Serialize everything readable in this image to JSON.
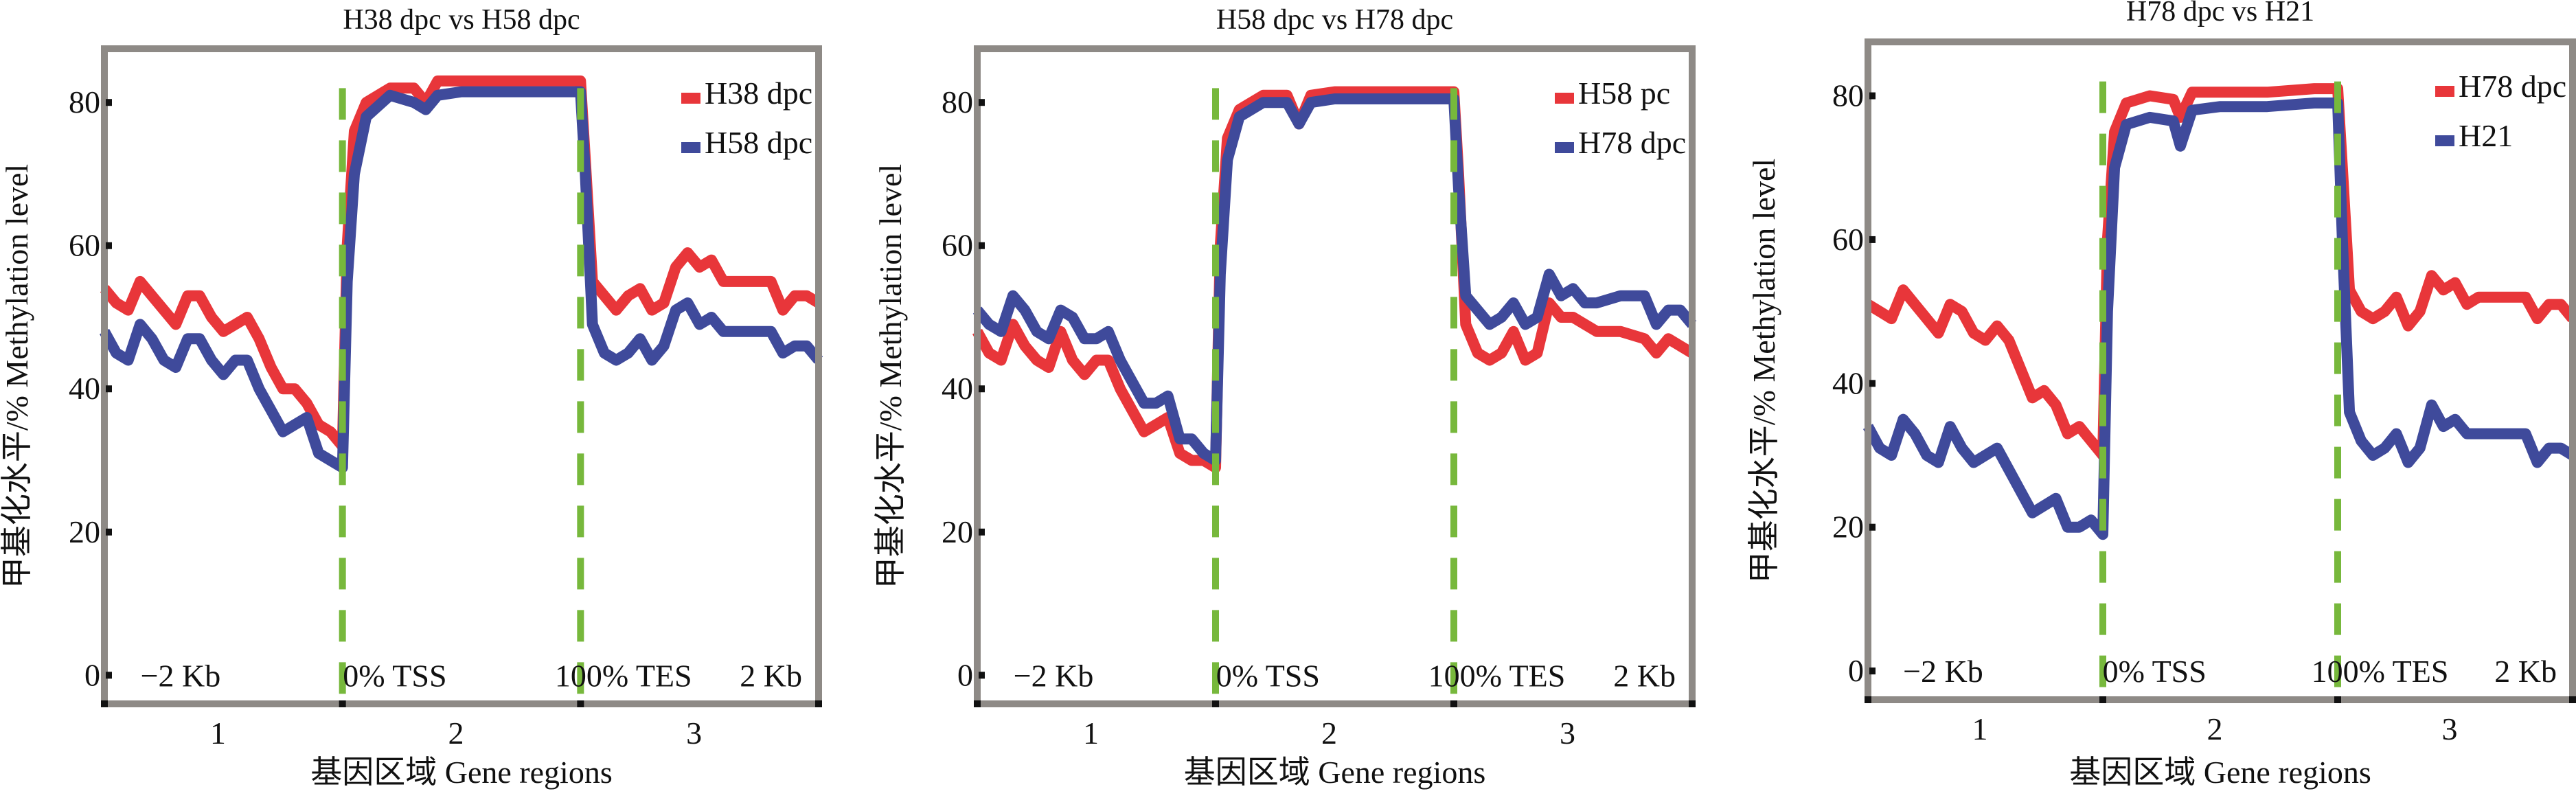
{
  "chart_data": [
    {
      "type": "line",
      "title": "H38 dpc vs H58 dpc",
      "xlabel": "基因区域  Gene regions",
      "ylabel": "甲基化水平/% Methylation level",
      "xlim": [
        0.5,
        3.5
      ],
      "ylim": [
        -4,
        87.5
      ],
      "xticks": [
        1,
        2,
        3
      ],
      "yticks": [
        0,
        20,
        40,
        60,
        80
      ],
      "region_markers": [
        {
          "x": 1.5,
          "label": "TSS"
        },
        {
          "x": 2.5,
          "label": "TES"
        }
      ],
      "region_labels": [
        "−2 Kb",
        "0% TSS",
        "100% TES",
        "2 Kb"
      ],
      "legend_position": "top-right",
      "grid": false,
      "series": [
        {
          "name": "H38 dpc",
          "color": "#e8363a",
          "x": [
            0.5,
            0.55,
            0.6,
            0.65,
            0.7,
            0.75,
            0.8,
            0.85,
            0.9,
            0.95,
            1.0,
            1.05,
            1.1,
            1.15,
            1.2,
            1.25,
            1.3,
            1.35,
            1.4,
            1.45,
            1.5,
            1.52,
            1.55,
            1.6,
            1.7,
            1.8,
            1.85,
            1.9,
            2.0,
            2.2,
            2.4,
            2.5,
            2.52,
            2.55,
            2.6,
            2.65,
            2.7,
            2.75,
            2.8,
            2.85,
            2.9,
            2.95,
            3.0,
            3.05,
            3.1,
            3.2,
            3.3,
            3.35,
            3.4,
            3.45,
            3.5
          ],
          "y": [
            54,
            52,
            51,
            55,
            53,
            51,
            49,
            53,
            53,
            50,
            48,
            49,
            50,
            47,
            43,
            40,
            40,
            38,
            35,
            34,
            32,
            60,
            76,
            80,
            82,
            82,
            80,
            83,
            83,
            83,
            83,
            83,
            72,
            55,
            53,
            51,
            53,
            54,
            51,
            52,
            57,
            59,
            57,
            58,
            55,
            55,
            55,
            51,
            53,
            53,
            52
          ]
        },
        {
          "name": "H58 dpc",
          "color": "#3f4a9b",
          "x": [
            0.5,
            0.55,
            0.6,
            0.65,
            0.7,
            0.75,
            0.8,
            0.85,
            0.9,
            0.95,
            1.0,
            1.05,
            1.1,
            1.15,
            1.2,
            1.25,
            1.3,
            1.35,
            1.4,
            1.45,
            1.5,
            1.52,
            1.55,
            1.6,
            1.7,
            1.8,
            1.85,
            1.9,
            2.0,
            2.2,
            2.4,
            2.5,
            2.52,
            2.55,
            2.6,
            2.65,
            2.7,
            2.75,
            2.8,
            2.85,
            2.9,
            2.95,
            3.0,
            3.05,
            3.1,
            3.2,
            3.3,
            3.35,
            3.4,
            3.45,
            3.5
          ],
          "y": [
            48,
            45,
            44,
            49,
            47,
            44,
            43,
            47,
            47,
            44,
            42,
            44,
            44,
            40,
            37,
            34,
            35,
            36,
            31,
            30,
            29,
            55,
            70,
            78,
            81,
            80,
            79,
            81,
            81.5,
            81.5,
            81.5,
            81.5,
            70,
            49,
            45,
            44,
            45,
            47,
            44,
            46,
            51,
            52,
            49,
            50,
            48,
            48,
            48,
            45,
            46,
            46,
            44
          ]
        }
      ]
    },
    {
      "type": "line",
      "title": "H58 dpc vs H78 dpc",
      "xlabel": "基因区域  Gene regions",
      "ylabel": "甲基化水平/% Methylation level",
      "xlim": [
        0.5,
        3.5
      ],
      "ylim": [
        -4,
        87.5
      ],
      "xticks": [
        1,
        2,
        3
      ],
      "yticks": [
        0,
        20,
        40,
        60,
        80
      ],
      "region_markers": [
        {
          "x": 1.5,
          "label": "TSS"
        },
        {
          "x": 2.5,
          "label": "TES"
        }
      ],
      "region_labels": [
        "−2 Kb",
        "0% TSS",
        "100% TES",
        "2 Kb"
      ],
      "legend_position": "top-right",
      "grid": false,
      "series": [
        {
          "name": "H58 pc",
          "color": "#e8363a",
          "x": [
            0.5,
            0.55,
            0.6,
            0.65,
            0.7,
            0.75,
            0.8,
            0.85,
            0.9,
            0.95,
            1.0,
            1.05,
            1.1,
            1.15,
            1.2,
            1.25,
            1.3,
            1.35,
            1.4,
            1.45,
            1.5,
            1.52,
            1.55,
            1.6,
            1.7,
            1.8,
            1.85,
            1.9,
            2.0,
            2.2,
            2.4,
            2.5,
            2.52,
            2.55,
            2.6,
            2.65,
            2.7,
            2.75,
            2.8,
            2.85,
            2.9,
            2.95,
            3.0,
            3.05,
            3.1,
            3.2,
            3.3,
            3.35,
            3.4,
            3.45,
            3.5
          ],
          "y": [
            48,
            45,
            44,
            49,
            46,
            44,
            43,
            48,
            44,
            42,
            44,
            44,
            40,
            37,
            34,
            35,
            36,
            31,
            30,
            30,
            29,
            60,
            75,
            79,
            81,
            81,
            77,
            81,
            81.5,
            81.5,
            81.5,
            81.5,
            70,
            49,
            45,
            44,
            45,
            48,
            44,
            45,
            52,
            50,
            50,
            49,
            48,
            48,
            47,
            45,
            47,
            46,
            45
          ]
        },
        {
          "name": "H78 dpc",
          "color": "#3f4a9b",
          "x": [
            0.5,
            0.55,
            0.6,
            0.65,
            0.7,
            0.75,
            0.8,
            0.85,
            0.9,
            0.95,
            1.0,
            1.05,
            1.1,
            1.15,
            1.2,
            1.25,
            1.3,
            1.35,
            1.4,
            1.45,
            1.5,
            1.52,
            1.55,
            1.6,
            1.7,
            1.8,
            1.85,
            1.9,
            2.0,
            2.2,
            2.4,
            2.5,
            2.52,
            2.55,
            2.6,
            2.65,
            2.7,
            2.75,
            2.8,
            2.85,
            2.9,
            2.95,
            3.0,
            3.05,
            3.1,
            3.2,
            3.3,
            3.35,
            3.4,
            3.45,
            3.5
          ],
          "y": [
            51,
            49,
            48,
            53,
            51,
            48,
            47,
            51,
            50,
            47,
            47,
            48,
            44,
            41,
            38,
            38,
            39,
            33,
            33,
            31,
            30,
            56,
            72,
            78,
            80,
            80,
            77,
            80,
            80.5,
            80.5,
            80.5,
            80.5,
            68,
            53,
            51,
            49,
            50,
            52,
            49,
            50,
            56,
            53,
            54,
            52,
            52,
            53,
            53,
            49,
            51,
            51,
            49
          ]
        }
      ]
    },
    {
      "type": "line",
      "title": "H78 dpc vs H21",
      "xlabel": "基因区域  Gene regions",
      "ylabel": "甲基化水平/% Methylation level",
      "xlim": [
        0.5,
        3.5
      ],
      "ylim": [
        -4,
        87.5
      ],
      "xticks": [
        1,
        2,
        3
      ],
      "yticks": [
        0,
        20,
        40,
        60,
        80
      ],
      "region_markers": [
        {
          "x": 1.5,
          "label": "TSS"
        },
        {
          "x": 2.5,
          "label": "TES"
        }
      ],
      "region_labels": [
        "−2 Kb",
        "0% TSS",
        "100% TES",
        "2 Kb"
      ],
      "legend_position": "top-right",
      "grid": false,
      "series": [
        {
          "name": "H78 dpc",
          "color": "#e8363a",
          "x": [
            0.5,
            0.55,
            0.6,
            0.65,
            0.7,
            0.75,
            0.8,
            0.85,
            0.9,
            0.95,
            1.0,
            1.05,
            1.1,
            1.15,
            1.2,
            1.25,
            1.3,
            1.35,
            1.4,
            1.45,
            1.5,
            1.52,
            1.55,
            1.6,
            1.7,
            1.8,
            1.83,
            1.88,
            2.0,
            2.2,
            2.4,
            2.5,
            2.52,
            2.55,
            2.6,
            2.65,
            2.7,
            2.75,
            2.8,
            2.85,
            2.9,
            2.95,
            3.0,
            3.05,
            3.1,
            3.2,
            3.3,
            3.35,
            3.4,
            3.45,
            3.5
          ],
          "y": [
            51,
            50,
            49,
            53,
            51,
            49,
            47,
            51,
            50,
            47,
            46,
            48,
            46,
            42,
            38,
            39,
            37,
            33,
            34,
            32,
            30,
            60,
            75,
            79,
            80,
            79.5,
            77,
            80.5,
            80.5,
            80.5,
            81,
            81,
            70,
            53,
            50,
            49,
            50,
            52,
            48,
            50,
            55,
            53,
            54,
            51,
            52,
            52,
            52,
            49,
            51,
            51,
            49
          ]
        },
        {
          "name": "H21",
          "color": "#3f4a9b",
          "x": [
            0.5,
            0.55,
            0.6,
            0.65,
            0.7,
            0.75,
            0.8,
            0.85,
            0.9,
            0.95,
            1.0,
            1.05,
            1.1,
            1.15,
            1.2,
            1.25,
            1.3,
            1.35,
            1.4,
            1.45,
            1.5,
            1.52,
            1.55,
            1.6,
            1.7,
            1.8,
            1.83,
            1.88,
            2.0,
            2.2,
            2.4,
            2.5,
            2.52,
            2.55,
            2.6,
            2.65,
            2.7,
            2.75,
            2.8,
            2.85,
            2.9,
            2.95,
            3.0,
            3.05,
            3.1,
            3.2,
            3.3,
            3.35,
            3.4,
            3.45,
            3.5
          ],
          "y": [
            34,
            31,
            30,
            35,
            33,
            30,
            29,
            34,
            31,
            29,
            30,
            31,
            28,
            25,
            22,
            23,
            24,
            20,
            20,
            21,
            19,
            50,
            70,
            76,
            77,
            76.5,
            73,
            78,
            78.5,
            78.5,
            79,
            79,
            60,
            36,
            32,
            30,
            31,
            33,
            29,
            31,
            37,
            34,
            35,
            33,
            33,
            33,
            33,
            29,
            31,
            31,
            30
          ]
        }
      ]
    }
  ]
}
